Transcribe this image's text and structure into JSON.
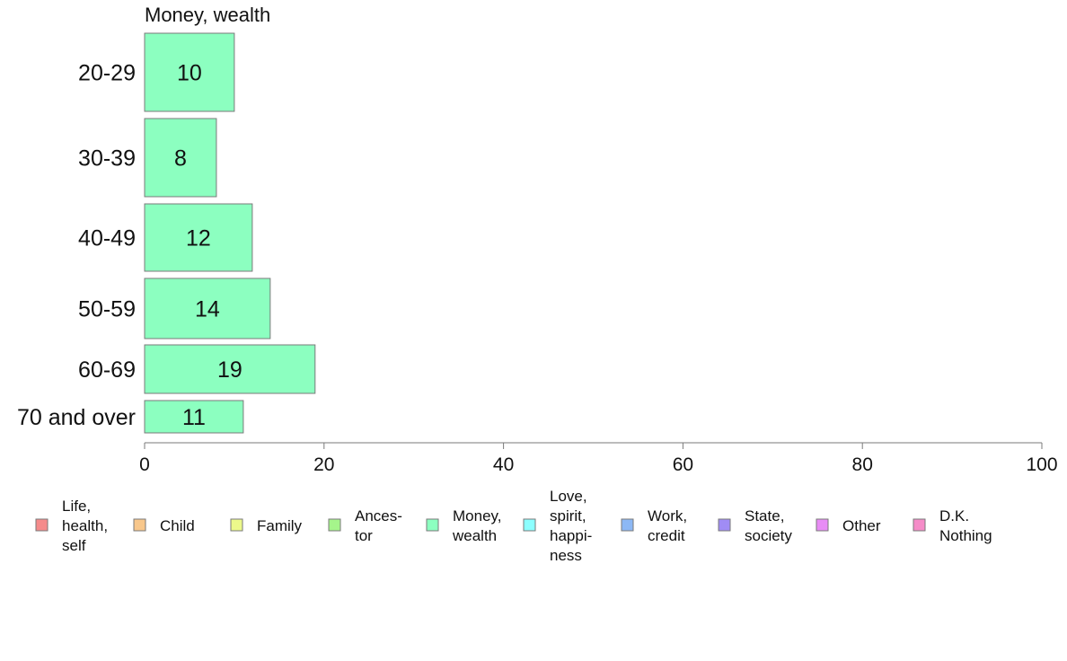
{
  "chart_data": {
    "type": "bar",
    "orientation": "horizontal",
    "title": "Money, wealth",
    "xlabel": "",
    "ylabel": "",
    "categories": [
      "20-29",
      "30-39",
      "40-49",
      "50-59",
      "60-69",
      "70 and over"
    ],
    "series": [
      {
        "name": "Money, wealth",
        "values": [
          10,
          8,
          12,
          14,
          19,
          11
        ],
        "color": "#8cffc0"
      }
    ],
    "xlim": [
      0,
      100
    ],
    "xticks": [
      "0",
      "20",
      "40",
      "60",
      "80",
      "100"
    ],
    "grid": false,
    "legend_position": "bottom",
    "legend": [
      {
        "lines": [
          "Life,",
          "health,",
          "self"
        ],
        "color": "#f58b8b"
      },
      {
        "lines": [
          "Child"
        ],
        "color": "#f8c78b"
      },
      {
        "lines": [
          "Family"
        ],
        "color": "#ecf98b"
      },
      {
        "lines": [
          "Ances-",
          "tor"
        ],
        "color": "#a5f58b"
      },
      {
        "lines": [
          "Money,",
          "wealth"
        ],
        "color": "#8cffc0"
      },
      {
        "lines": [
          "Love,",
          "spirit,",
          "happi-",
          "ness"
        ],
        "color": "#8cffff"
      },
      {
        "lines": [
          "Work,",
          "credit"
        ],
        "color": "#8cb8f5"
      },
      {
        "lines": [
          "State,",
          "society"
        ],
        "color": "#a08cf5"
      },
      {
        "lines": [
          "Other"
        ],
        "color": "#e88cf5"
      },
      {
        "lines": [
          "D.K.",
          "Nothing"
        ],
        "color": "#f58cc8"
      }
    ]
  }
}
